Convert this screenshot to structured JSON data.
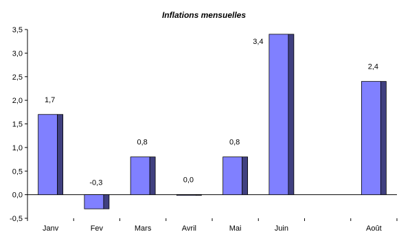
{
  "chart_data": {
    "type": "bar",
    "title": "Inflations mensuelles",
    "xlabel": "",
    "ylabel": "",
    "categories": [
      "Janv",
      "Fev",
      "Mars",
      "Avril",
      "Mai",
      "Juin",
      "",
      "Août"
    ],
    "series": [
      {
        "values": [
          1.7,
          -0.3,
          0.8,
          0.0,
          0.8,
          3.4,
          null,
          2.4
        ],
        "data_labels": [
          "1,7",
          "-0,3",
          "0,8",
          "0,0",
          "0,8",
          "3,4",
          "",
          "2,4"
        ]
      }
    ],
    "ylim": [
      -0.5,
      3.5
    ],
    "yticks": [
      -0.5,
      0.0,
      0.5,
      1.0,
      1.5,
      2.0,
      2.5,
      3.0,
      3.5
    ],
    "ytick_labels": [
      "-0,5",
      "0,0",
      "0,5",
      "1,0",
      "1,5",
      "2,0",
      "2,5",
      "3,0",
      "3,5"
    ],
    "grid": false,
    "legend": "none",
    "colors": {
      "bar_face": "#8080ff",
      "bar_side": "#404080",
      "bar_outline": "#000000",
      "axis": "#000000",
      "background": "#ffffff"
    }
  }
}
